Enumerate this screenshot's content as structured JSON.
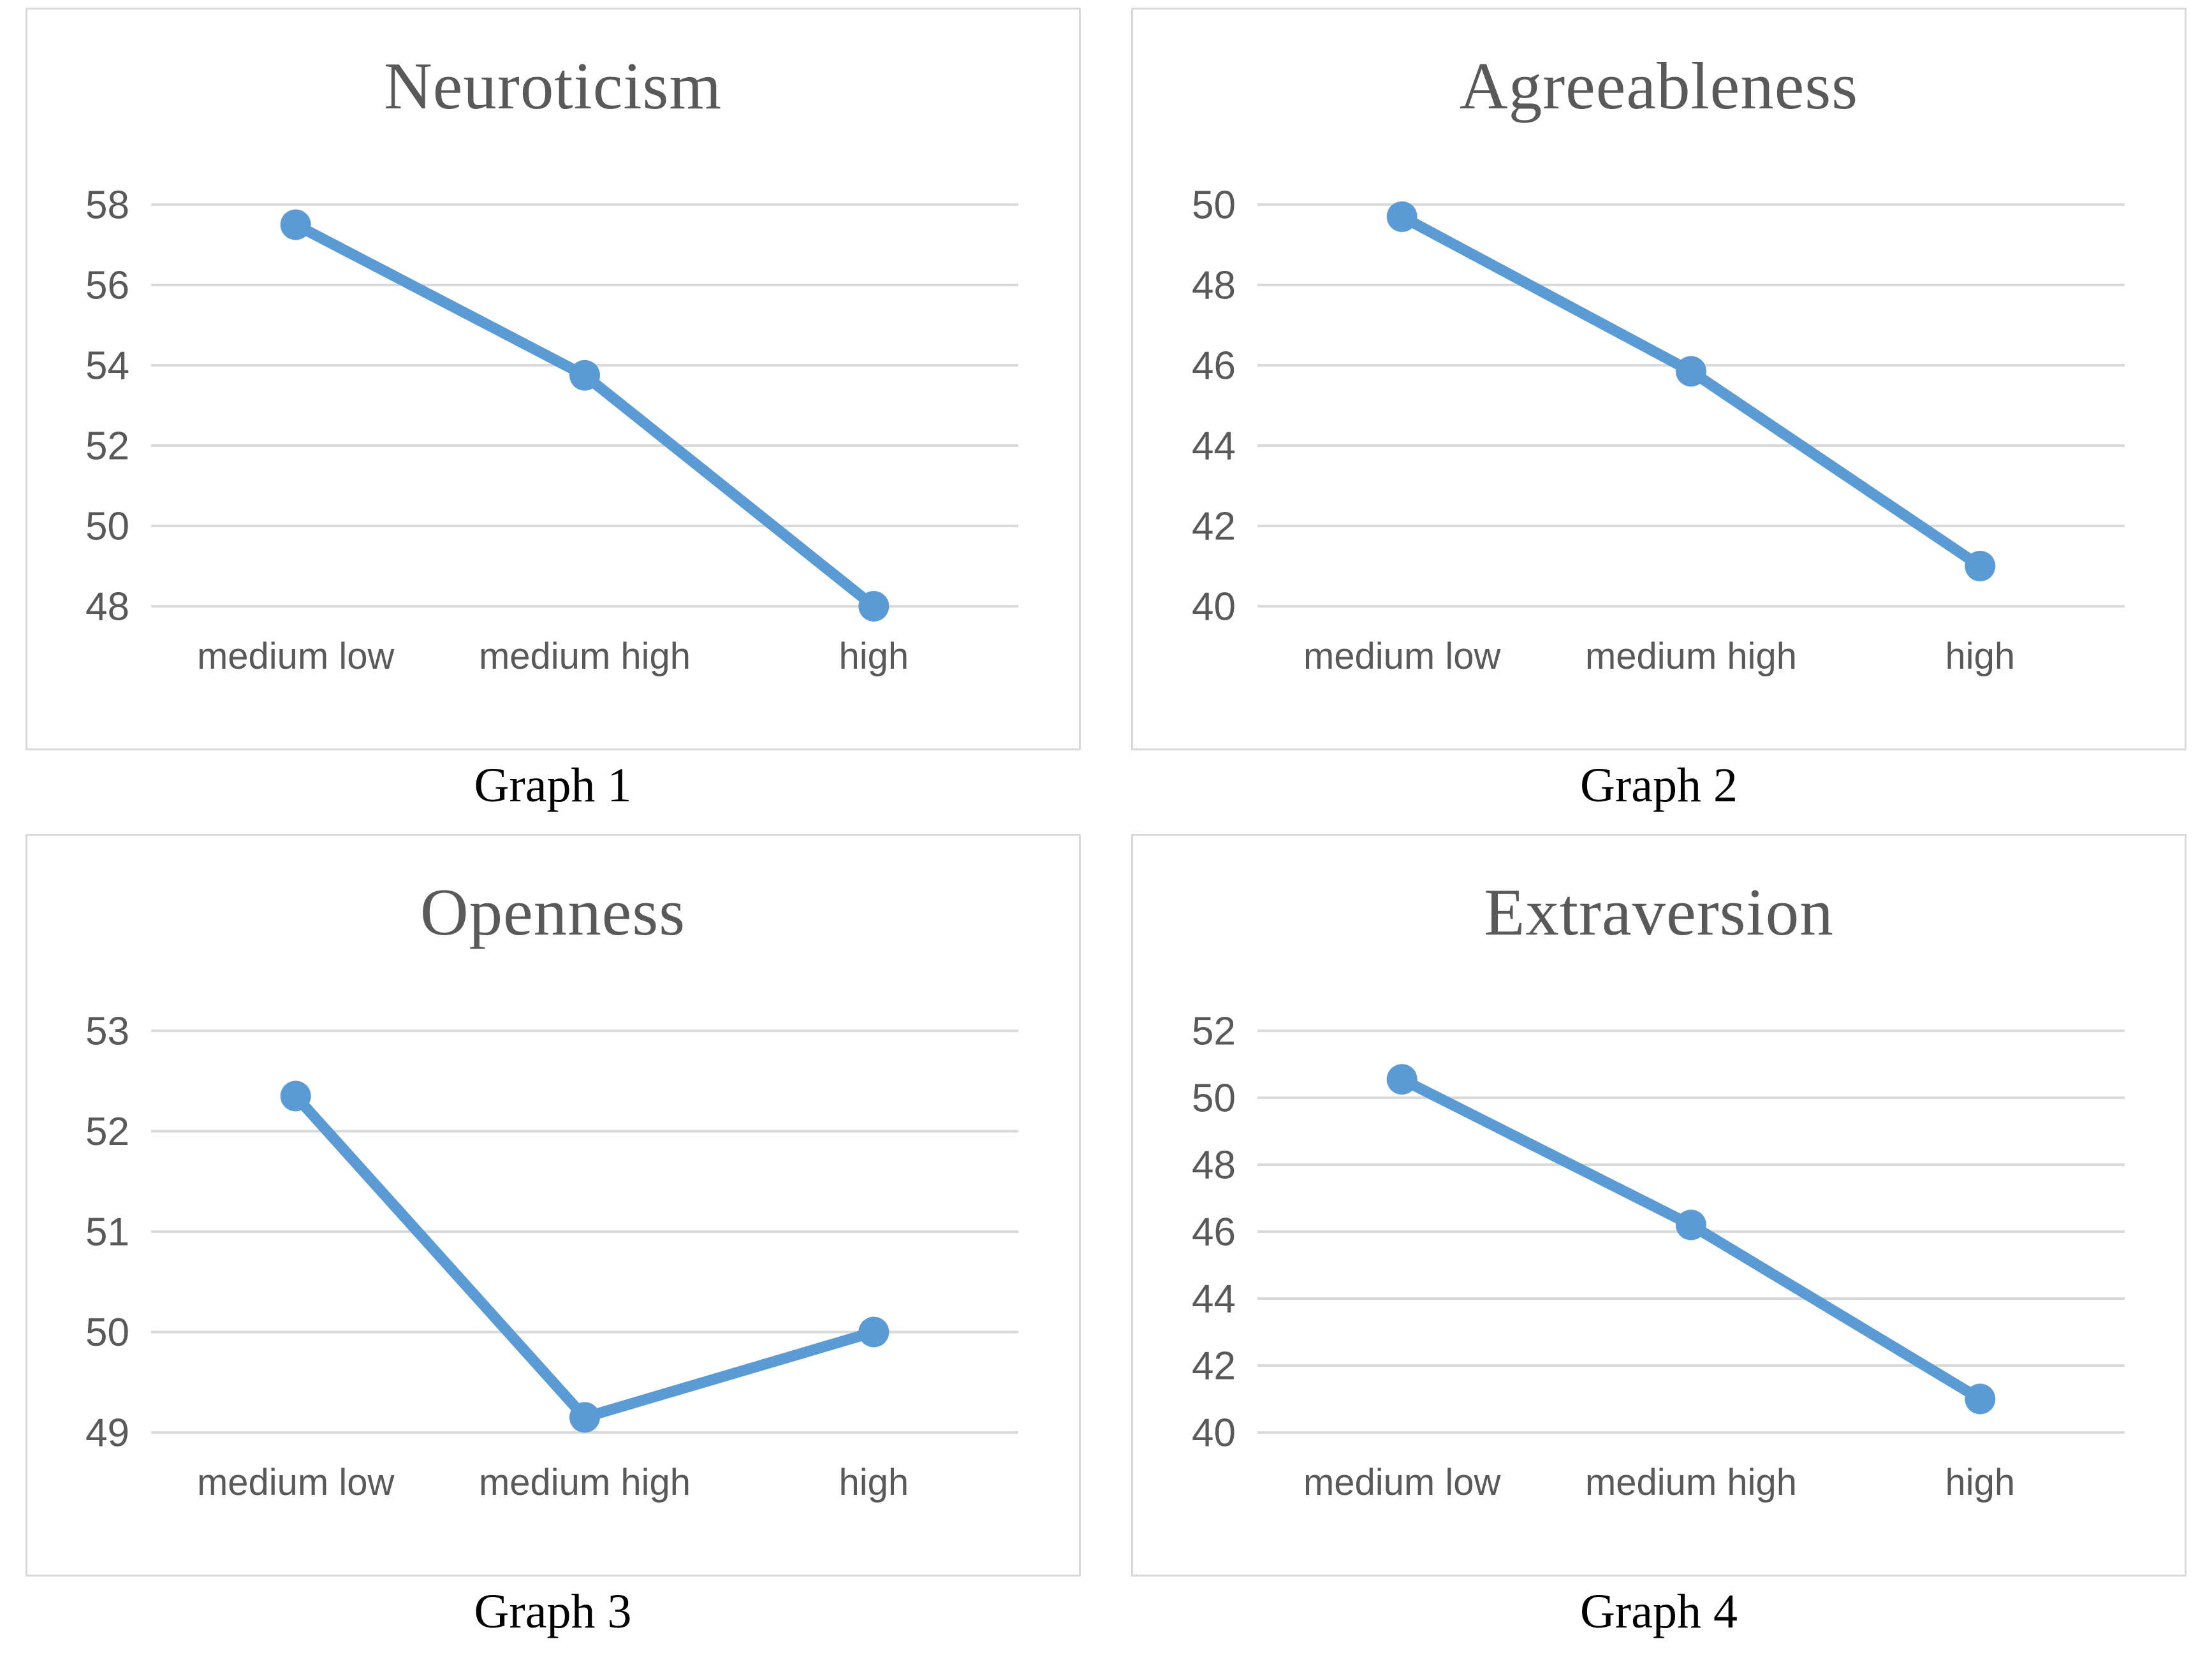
{
  "colors": {
    "line": "#5B9BD5",
    "grid": "#D9D9D9",
    "box_border": "#D9D9D9",
    "axis_text": "#595959",
    "title_text": "#595959",
    "caption_text": "#000000"
  },
  "chart_data": [
    {
      "type": "line",
      "title": "Neuroticism",
      "caption": "Graph 1",
      "categories": [
        "medium low",
        "medium high",
        "high"
      ],
      "values": [
        57.5,
        53.75,
        48
      ],
      "ylim": [
        48,
        58
      ],
      "ytick_step": 2,
      "yticks": [
        48,
        50,
        52,
        54,
        56,
        58
      ],
      "grid": true,
      "legend": "none",
      "xlabel": "",
      "ylabel": ""
    },
    {
      "type": "line",
      "title": "Agreeableness",
      "caption": "Graph 2",
      "categories": [
        "medium low",
        "medium high",
        "high"
      ],
      "values": [
        49.7,
        45.85,
        41
      ],
      "ylim": [
        40,
        50
      ],
      "ytick_step": 2,
      "yticks": [
        40,
        42,
        44,
        46,
        48,
        50
      ],
      "grid": true,
      "legend": "none",
      "xlabel": "",
      "ylabel": ""
    },
    {
      "type": "line",
      "title": "Openness",
      "caption": "Graph 3",
      "categories": [
        "medium low",
        "medium high",
        "high"
      ],
      "values": [
        52.35,
        49.15,
        50
      ],
      "ylim": [
        49,
        53
      ],
      "ytick_step": 1,
      "yticks": [
        49,
        50,
        51,
        52,
        53
      ],
      "grid": true,
      "legend": "none",
      "xlabel": "",
      "ylabel": ""
    },
    {
      "type": "line",
      "title": "Extraversion",
      "caption": "Graph 4",
      "categories": [
        "medium low",
        "medium high",
        "high"
      ],
      "values": [
        50.55,
        46.2,
        41
      ],
      "ylim": [
        40,
        52
      ],
      "ytick_step": 2,
      "yticks": [
        40,
        42,
        44,
        46,
        48,
        50,
        52
      ],
      "grid": true,
      "legend": "none",
      "xlabel": "",
      "ylabel": ""
    }
  ]
}
